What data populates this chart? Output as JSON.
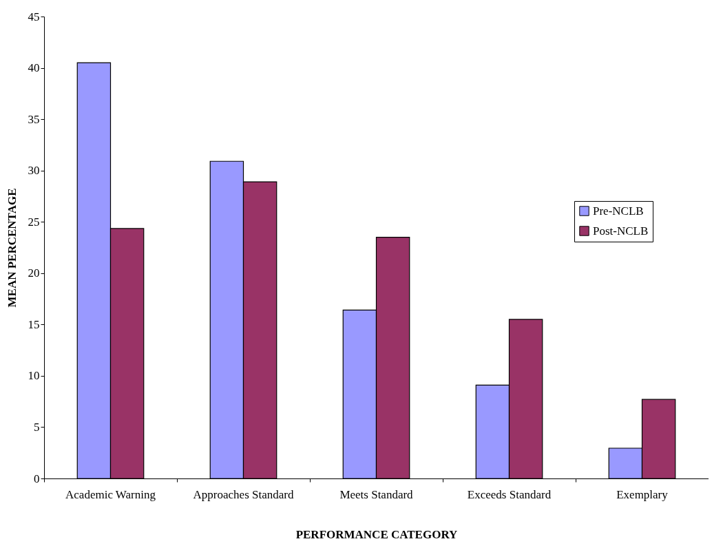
{
  "chart_data": {
    "type": "bar",
    "xlabel": "PERFORMANCE CATEGORY",
    "ylabel": "MEAN PERCENTAGE",
    "categories": [
      "Academic Warning",
      "Approaches Standard",
      "Meets Standard",
      "Exceeds Standard",
      "Exemplary"
    ],
    "series": [
      {
        "name": "Pre-NCLB",
        "color": "#9999ff",
        "values": [
          40.5,
          30.9,
          16.4,
          9.1,
          2.95
        ]
      },
      {
        "name": "Post-NCLB",
        "color": "#993366",
        "values": [
          24.35,
          28.9,
          23.5,
          15.5,
          7.7
        ]
      }
    ],
    "ylim": [
      0,
      45
    ],
    "yticks": [
      0,
      5,
      10,
      15,
      20,
      25,
      30,
      35,
      40,
      45
    ],
    "grid": false,
    "legend": "right"
  }
}
